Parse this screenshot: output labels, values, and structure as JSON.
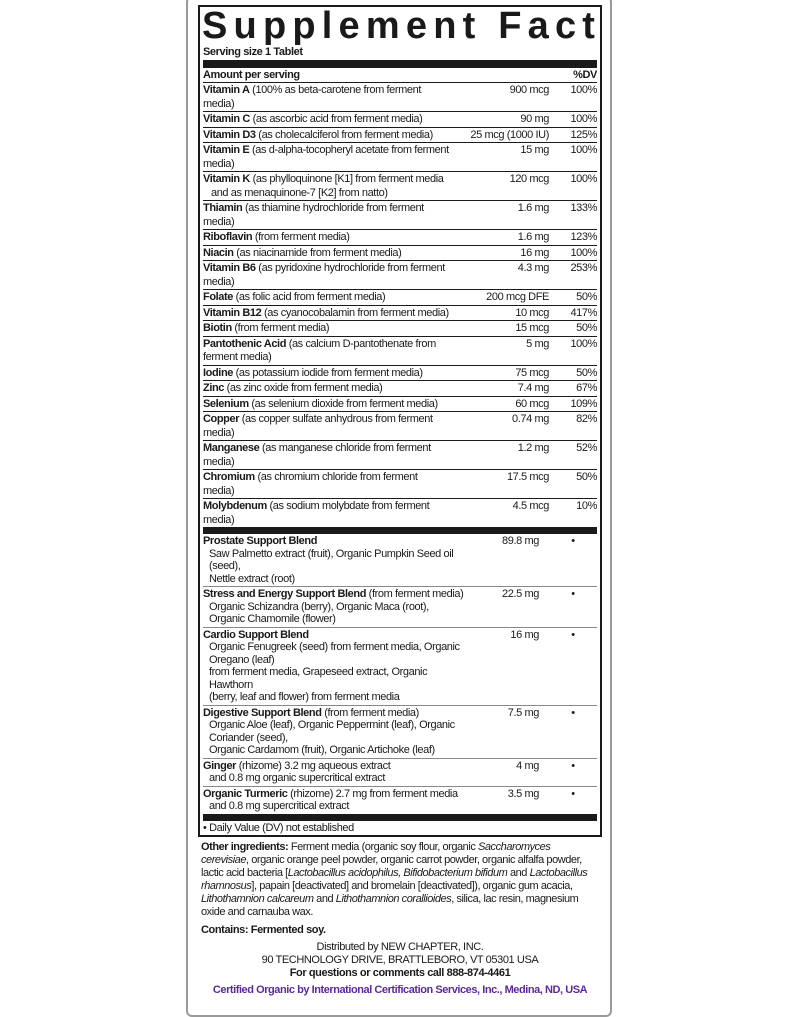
{
  "title": "Supplement Facts",
  "serving_size": "Serving size 1 Tablet",
  "header": {
    "amount": "Amount per serving",
    "dv": "%DV"
  },
  "nutrients": [
    {
      "name": "Vitamin A",
      "desc": " (100% as beta-carotene from ferment media)",
      "amount": "900 mcg",
      "dv": "100%"
    },
    {
      "name": "Vitamin C",
      "desc": " (as ascorbic acid from ferment media)",
      "amount": "90 mg",
      "dv": "100%"
    },
    {
      "name": "Vitamin D3",
      "desc": " (as cholecalciferol from ferment media)",
      "amount": "25 mcg (1000 IU)",
      "dv": "125%"
    },
    {
      "name": "Vitamin E",
      "desc": " (as d-alpha-tocopheryl acetate from ferment media)",
      "amount": "15 mg",
      "dv": "100%"
    },
    {
      "name": "Vitamin K",
      "desc": " (as phylloquinone [K1] from ferment media",
      "desc2": "and as menaquinone-7 [K2] from natto)",
      "amount": "120 mcg",
      "dv": "100%"
    },
    {
      "name": "Thiamin",
      "desc": " (as thiamine hydrochloride from ferment media)",
      "amount": "1.6 mg",
      "dv": "133%"
    },
    {
      "name": "Riboflavin",
      "desc": " (from ferment media)",
      "amount": "1.6 mg",
      "dv": "123%"
    },
    {
      "name": "Niacin",
      "desc": " (as niacinamide from ferment media)",
      "amount": "16 mg",
      "dv": "100%"
    },
    {
      "name": "Vitamin B6",
      "desc": " (as pyridoxine hydrochloride from ferment media)",
      "amount": "4.3 mg",
      "dv": "253%"
    },
    {
      "name": "Folate",
      "desc": " (as folic acid from ferment media)",
      "amount": "200 mcg DFE",
      "dv": "50%"
    },
    {
      "name": "Vitamin B12",
      "desc": " (as cyanocobalamin from ferment media)",
      "amount": "10 mcg",
      "dv": "417%"
    },
    {
      "name": "Biotin",
      "desc": " (from ferment media)",
      "amount": "15 mcg",
      "dv": "50%"
    },
    {
      "name": "Pantothenic Acid",
      "desc": " (as calcium D-pantothenate from ferment media)",
      "amount": "5 mg",
      "dv": "100%"
    },
    {
      "name": "Iodine",
      "desc": " (as potassium iodide from ferment media)",
      "amount": "75 mcg",
      "dv": "50%"
    },
    {
      "name": "Zinc",
      "desc": " (as zinc oxide from ferment media)",
      "amount": "7.4 mg",
      "dv": "67%"
    },
    {
      "name": "Selenium",
      "desc": " (as selenium dioxide from ferment media)",
      "amount": "60 mcg",
      "dv": "109%"
    },
    {
      "name": "Copper",
      "desc": " (as copper sulfate anhydrous from ferment media)",
      "amount": "0.74 mg",
      "dv": "82%"
    },
    {
      "name": "Manganese",
      "desc": " (as manganese chloride from ferment media)",
      "amount": "1.2 mg",
      "dv": "52%"
    },
    {
      "name": "Chromium",
      "desc": " (as chromium chloride from ferment media)",
      "amount": "17.5 mcg",
      "dv": "50%"
    },
    {
      "name": "Molybdenum",
      "desc": " (as sodium molybdate from ferment media)",
      "amount": "4.5 mcg",
      "dv": "10%"
    }
  ],
  "blends": [
    {
      "name": "Prostate Support Blend",
      "desc": "",
      "lines": [
        "Saw Palmetto extract (fruit), Organic Pumpkin Seed oil (seed),",
        "Nettle extract (root)"
      ],
      "amount": "89.8 mg",
      "dv": "•"
    },
    {
      "name": "Stress and Energy Support Blend",
      "desc": " (from ferment media)",
      "lines": [
        "Organic Schizandra (berry), Organic Maca (root),",
        "Organic Chamomile (flower)"
      ],
      "amount": "22.5 mg",
      "dv": "•"
    },
    {
      "name": "Cardio Support Blend",
      "desc": "",
      "lines": [
        "Organic Fenugreek (seed) from ferment media, Organic Oregano (leaf)",
        "from ferment media, Grapeseed extract, Organic Hawthorn",
        "(berry, leaf and flower) from ferment media"
      ],
      "amount": "16 mg",
      "dv": "•"
    },
    {
      "name": "Digestive Support Blend",
      "desc": " (from ferment media)",
      "lines": [
        "Organic Aloe (leaf), Organic Peppermint (leaf), Organic Coriander (seed),",
        "Organic Cardamom (fruit), Organic Artichoke (leaf)"
      ],
      "amount": "7.5 mg",
      "dv": "•"
    },
    {
      "name": "Ginger",
      "desc": " (rhizome) 3.2 mg aqueous extract",
      "lines": [
        "and 0.8 mg organic supercritical extract"
      ],
      "amount": "4 mg",
      "dv": "•"
    },
    {
      "name": "Organic Turmeric",
      "desc": " (rhizome) 2.7 mg from ferment media",
      "lines": [
        "and 0.8 mg supercritical extract"
      ],
      "amount": "3.5 mg",
      "dv": "•"
    }
  ],
  "footnote": "• Daily Value (DV) not established",
  "other": {
    "label": "Other ingredients:",
    "t1": " Ferment media (organic soy flour, organic ",
    "i1": "Saccharomyces cerevisiae",
    "t2": ", organic orange peel powder, organic carrot powder, organic alfalfa powder, lactic acid bacteria [",
    "i2": "Lactobacillus acidophilus, Bifidobacterium bifidum",
    "t3": " and ",
    "i3": "Lactobacillus rhamnosus",
    "t4": "], papain [deactivated] and bromelain [deactivated]), organic gum acacia, ",
    "i4": "Lithothamnion calcareum",
    "t5": " and ",
    "i5": "Lithothamnion corallioides",
    "t6": ", silica, lac resin, magnesium oxide and carnauba wax."
  },
  "contains": "Contains: Fermented soy.",
  "distributor": [
    "Distributed by NEW CHAPTER, INC.",
    "90 TECHNOLOGY DRIVE, BRATTLEBORO, VT 05301 USA"
  ],
  "questions": "For questions or comments call 888-874-4461",
  "certified": "Certified Organic by International Certification Services, Inc., Medina, ND, USA",
  "colors": {
    "text": "#1a1a1a",
    "certified": "#5b2a9a"
  }
}
